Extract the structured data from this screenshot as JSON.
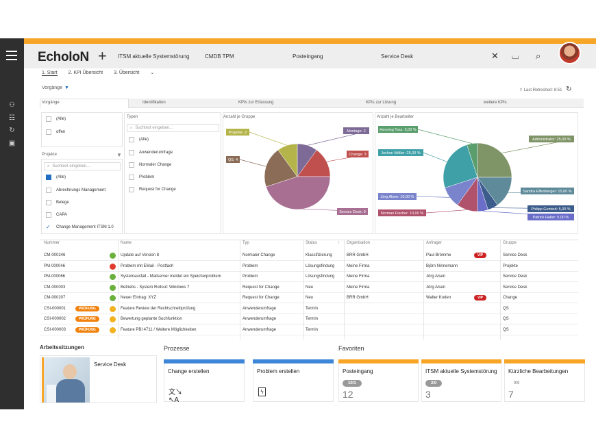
{
  "header": {
    "logo": "EcholoN",
    "tabs": [
      "ITSM aktuelle Systemstörung",
      "CMDB TPM",
      "Posteingang",
      "Service Desk"
    ]
  },
  "breadcrumb": [
    "1. Start",
    "2. KPI Übersicht",
    "3. Übersicht"
  ],
  "vorgaenge_label": "Vorgänge",
  "last_refreshed": "Last Refreshed: 8:51",
  "tabs": [
    "Vorgänge",
    "Identifikation",
    "KPIs zur Erfassung",
    "KPIs zur Lösung",
    "weitere KPIs"
  ],
  "status_filter": [
    "(Alle)",
    "offen"
  ],
  "projekte": {
    "label": "Projekte",
    "search_placeholder": "Suchtext eingeben...",
    "items": [
      "(Alle)",
      "Abrechnungs Management",
      "Belege",
      "CAPA",
      "Change Management ITSM 1.0"
    ]
  },
  "typen": {
    "label": "Typen",
    "search_placeholder": "Suchtext eingeben...",
    "items": [
      "(Alle)",
      "Anwenderumfrage",
      "Normaler Change",
      "Problem",
      "Request for Change"
    ]
  },
  "chart_data": [
    {
      "type": "pie",
      "title": "Anzahl je Gruppe",
      "categories": [
        "Montage",
        "Change",
        "Service Desk",
        "QS",
        "Projekte"
      ],
      "values": [
        2,
        3,
        9,
        4,
        2
      ],
      "labels": [
        "Montage: 2",
        "Change: 3",
        "Service Desk: 9",
        "QS: 4",
        "Projekte: 2"
      ],
      "colors": [
        "#7e6a97",
        "#c0504d",
        "#a86f93",
        "#8b6c56",
        "#b5b44a"
      ]
    },
    {
      "type": "pie",
      "title": "Anzahl je Bearbeiter",
      "categories": [
        "Administrator",
        "Sandra Effenberger",
        "Philipp Gemind",
        "Patrick Haller",
        "Norman Fischer",
        "Jörg Alsen",
        "Jochen Möller",
        "Henning Tosz"
      ],
      "values": [
        25,
        15,
        5,
        5,
        10,
        10,
        25,
        5
      ],
      "labels": [
        "Administrator: 25,00 %",
        "Sandra Effenberger: 15,00 %",
        "Philipp Gemind: 5,00 %",
        "Patrick Haller: 5,00 %",
        "Norman Fischer: 10,00 %",
        "Jörg Alsen: 10,00 %",
        "Jochen Möller: 25,00 %",
        "Henning Tosz: 5,00 %"
      ],
      "colors": [
        "#7f9467",
        "#5e8a99",
        "#3c5d8b",
        "#6a6ec9",
        "#b0526b",
        "#7a84cc",
        "#3fa0a8",
        "#5a9e6e"
      ]
    }
  ],
  "table": {
    "headers": [
      "Nummer",
      "Name",
      "Typ",
      "Status",
      "Organisation",
      "Anfrager",
      "Gruppe"
    ],
    "rows": [
      {
        "nr": "CM-000246",
        "dot": "#6ab03c",
        "badge": "",
        "name": "Update auf Version 8",
        "typ": "Normaler Change",
        "status": "Klassifizierung",
        "org": "BRR GmbH",
        "anf": "Paul Brömme",
        "vip": "VIP",
        "gruppe": "Service Desk"
      },
      {
        "nr": "PM-000046",
        "dot": "#e03b2e",
        "badge": "",
        "name": "Problem mit EMail - Postfach",
        "typ": "Problem",
        "status": "Lösungsfindung",
        "org": "Meine Firma",
        "anf": "Björn Ninnemann",
        "vip": "",
        "gruppe": "Projekte"
      },
      {
        "nr": "PM-000066",
        "dot": "#6ab03c",
        "badge": "",
        "name": "Systemausfall - Mailserver meldet ein Speicherproblem",
        "typ": "Problem",
        "status": "Lösungsfindung",
        "org": "Meine Firma",
        "anf": "Jörg Alsen",
        "vip": "",
        "gruppe": "Service Desk"
      },
      {
        "nr": "CM-000003",
        "dot": "#6ab03c",
        "badge": "",
        "name": "Betriebs - System Rollout: Windows 7",
        "typ": "Request for Change",
        "status": "Neu",
        "org": "Meine Firma",
        "anf": "Jörg Alsen",
        "vip": "",
        "gruppe": "Service Desk"
      },
      {
        "nr": "CM-000207",
        "dot": "#6ab03c",
        "badge": "",
        "name": "Neuer Eintrag: XYZ",
        "typ": "Request for Change",
        "status": "Neu",
        "org": "BRR GmbH",
        "anf": "Walter Koden",
        "vip": "VIP",
        "gruppe": "Change"
      },
      {
        "nr": "CSI-000001",
        "dot": "#f2b21f",
        "badge": "PRÜFUNG",
        "name": "Feature Review der Rechtschreibprüfung",
        "typ": "Anwenderumfrage",
        "status": "Termin",
        "org": "",
        "anf": "",
        "vip": "",
        "gruppe": "QS"
      },
      {
        "nr": "CSI-000002",
        "dot": "#f2b21f",
        "badge": "PRÜFUNG",
        "name": "Bewertung geplante Suchfunktion",
        "typ": "Anwenderumfrage",
        "status": "Termin",
        "org": "",
        "anf": "",
        "vip": "",
        "gruppe": "QS"
      },
      {
        "nr": "CSI-000003",
        "dot": "#f2b21f",
        "badge": "PRÜFUNG",
        "name": "Feature PBI 4711 / Weitere Möglichkeiten",
        "typ": "Anwenderumfrage",
        "status": "Termin",
        "org": "",
        "anf": "",
        "vip": "",
        "gruppe": "QS"
      }
    ]
  },
  "arbeitssitzungen": {
    "title": "Arbeitssitzungen",
    "item": "Service Desk"
  },
  "prozesse": {
    "title": "Prozesse",
    "items": [
      {
        "label": "Change erstellen",
        "icon": "translate-icon",
        "color": "#3d86d8"
      },
      {
        "label": "Problem erstellen",
        "icon": "lightning-icon",
        "color": "#3d86d8"
      }
    ]
  },
  "favoriten": {
    "title": "Favoriten",
    "items": [
      {
        "label": "Posteingang",
        "pill": "10/1",
        "num": "12"
      },
      {
        "label": "ITSM aktuelle Systemstörung",
        "pill": "2/0",
        "num": "3"
      },
      {
        "label": "Kürzliche Bearbeitungen",
        "pill": "0/0",
        "num": "7"
      }
    ],
    "color": "#f6a526"
  }
}
